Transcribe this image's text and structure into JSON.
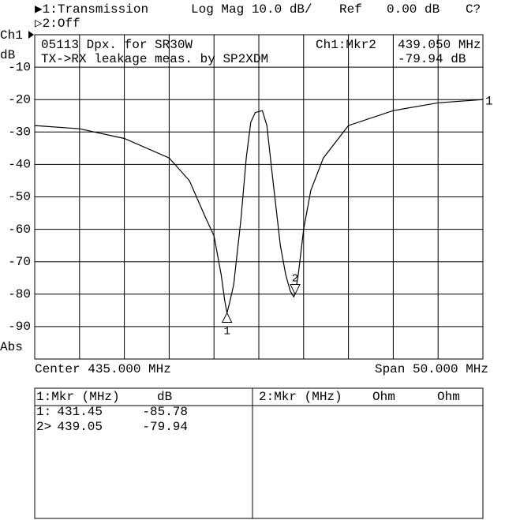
{
  "chart_data": {
    "type": "line",
    "channel_1": "▶1:Transmission",
    "channel_2": "▷2:Off",
    "format": "Log Mag  10.0 dB/",
    "ref_label": "Ref",
    "ref_value": "0.00 dB",
    "cal_status": "C?",
    "y_axis_channel": "Ch1",
    "y_axis_unit": "dB",
    "y_axis_mode": "Abs",
    "title_lines": [
      "05113 Dpx. for SR30W",
      "TX->RX leakage meas. by SP2XDM"
    ],
    "active_marker": {
      "label": "Ch1:Mkr2",
      "x": "439.050 MHz",
      "y": "-79.94 dB"
    },
    "center": "Center 435.000 MHz",
    "span": "Span 50.000 MHz",
    "xlim": [
      410,
      460
    ],
    "xticks": [
      410,
      415,
      420,
      425,
      430,
      435,
      440,
      445,
      450,
      455,
      460
    ],
    "ylim": [
      -100,
      0
    ],
    "yticks": [
      -10,
      -20,
      -30,
      -40,
      -50,
      -60,
      -70,
      -80,
      -90
    ],
    "grid": true,
    "series": [
      {
        "name": "1",
        "color": "#000000",
        "x": [
          410,
          415,
          420,
          425,
          427.25,
          429.0,
          430,
          430.8,
          431.2,
          431.45,
          431.8,
          432.2,
          433.0,
          433.6,
          434.1,
          434.6,
          435.4,
          435.9,
          436.5,
          437.4,
          438.0,
          438.5,
          438.9,
          439.05,
          439.4,
          440,
          440.8,
          442.2,
          445,
          450,
          455,
          460
        ],
        "values": [
          -28,
          -29,
          -32,
          -38,
          -45,
          -56,
          -62,
          -74,
          -82,
          -85.78,
          -82,
          -77,
          -57,
          -38,
          -27,
          -24,
          -23.4,
          -28,
          -43,
          -65,
          -74,
          -79,
          -80.8,
          -79.94,
          -74,
          -60,
          -48,
          -38,
          -28,
          -23.4,
          -21,
          -20
        ]
      }
    ],
    "markers": [
      {
        "name": "1",
        "index_label": "1:",
        "x": 431.45,
        "y": -85.78
      },
      {
        "name": "2",
        "index_label": "2>",
        "x": 439.05,
        "y": -79.94
      }
    ],
    "marker_table": {
      "left_header": [
        "1:Mkr (MHz)",
        "dB"
      ],
      "right_header": [
        "2:Mkr (MHz)",
        "Ohm",
        "Ohm"
      ]
    }
  }
}
